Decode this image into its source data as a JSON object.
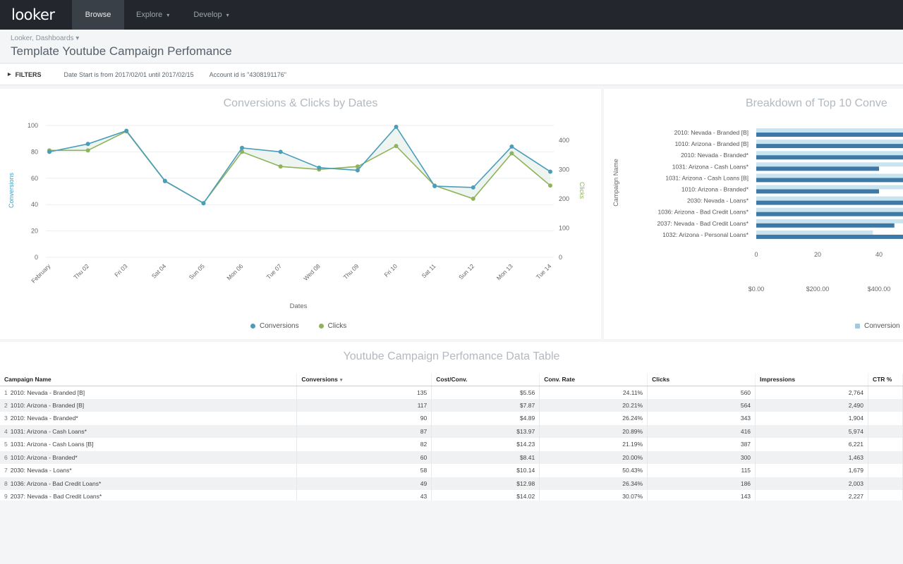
{
  "nav": {
    "logo": "looker",
    "items": [
      {
        "label": "Browse",
        "active": true,
        "caret": ""
      },
      {
        "label": "Explore",
        "active": false,
        "caret": "▾"
      },
      {
        "label": "Develop",
        "active": false,
        "caret": "▾"
      }
    ]
  },
  "header": {
    "breadcrumb": "Looker, Dashboards ▾",
    "title": "Template Youtube Campaign Perfomance"
  },
  "filters": {
    "label": "FILTERS",
    "date_text": "Date Start is from 2017/02/01 until 2017/02/15",
    "account_text": "Account id is \"4308191176\""
  },
  "colors": {
    "conversions": "#4b9dbc",
    "clicks": "#8fb35a",
    "bar_dark": "#3d79a6",
    "bar_light": "#c9e4f1"
  },
  "line_chart": {
    "title": "Conversions & Clicks by Dates",
    "xlabel": "Dates",
    "ylabel_left": "Conversions",
    "ylabel_right": "Clicks",
    "legend": [
      {
        "name": "Conversions",
        "color": "#4b9dbc"
      },
      {
        "name": "Clicks",
        "color": "#8fb35a"
      }
    ]
  },
  "bar_chart": {
    "title": "Breakdown of Top 10 Conve",
    "ylabel": "Campaign Name",
    "legend": "Conversion"
  },
  "chart_data": [
    {
      "type": "line",
      "title": "Conversions & Clicks by Dates",
      "xlabel": "Dates",
      "ylabel": "Conversions",
      "y2label": "Clicks",
      "x": [
        "February",
        "Thu 02",
        "Fri 03",
        "Sat 04",
        "Sun 05",
        "Mon 06",
        "Tue 07",
        "Wed 08",
        "Thu 09",
        "Fri 10",
        "Sat 11",
        "Sun 12",
        "Mon 13",
        "Tue 14"
      ],
      "ylim": [
        0,
        100
      ],
      "y_ticks": [
        0,
        20,
        40,
        60,
        80,
        100
      ],
      "y2lim": [
        0,
        450
      ],
      "y2_ticks": [
        0,
        100,
        200,
        300,
        400
      ],
      "series": [
        {
          "name": "Conversions",
          "axis": "left",
          "values": [
            80,
            86,
            96,
            58,
            41,
            83,
            80,
            68,
            66,
            99,
            54,
            53,
            84,
            65
          ]
        },
        {
          "name": "Clicks",
          "axis": "right",
          "values": [
            365,
            365,
            430,
            260,
            185,
            360,
            310,
            300,
            310,
            380,
            245,
            200,
            355,
            245
          ]
        }
      ],
      "legend_position": "bottom"
    },
    {
      "type": "bar",
      "title": "Breakdown of Top 10 Conve",
      "ylabel": "Campaign Name",
      "orientation": "horizontal",
      "categories": [
        "2010: Nevada - Branded [B]",
        "1010: Arizona - Branded [B]",
        "2010: Nevada - Branded*",
        "1031: Arizona - Cash Loans*",
        "1031: Arizona - Cash Loans [B]",
        "1010: Arizona - Branded*",
        "2030: Nevada - Loans*",
        "1036: Arizona - Bad Credit Loans*",
        "2037: Nevada - Bad Credit Loans*",
        "1032: Arizona - Personal Loans*"
      ],
      "x_ticks": [
        "0",
        "20",
        "40"
      ],
      "x2_ticks": [
        "$0.00",
        "$200.00",
        "$400.00"
      ],
      "values_light": [
        110,
        110,
        110,
        110,
        110,
        110,
        110,
        110,
        110,
        38
      ],
      "values_dark": [
        110,
        110,
        50,
        40,
        110,
        40,
        110,
        110,
        45,
        110
      ],
      "legend": [
        "Conversion"
      ]
    }
  ],
  "table": {
    "title": "Youtube Campaign Perfomance Data Table",
    "sort_icon": "▾",
    "columns": [
      "Campaign Name",
      "Conversions",
      "Cost/Conv.",
      "Conv. Rate",
      "Clicks",
      "Impressions",
      "CTR %"
    ],
    "rows": [
      [
        "1",
        "2010: Nevada - Branded [B]",
        "135",
        "$5.56",
        "24.11%",
        "560",
        "2,764"
      ],
      [
        "2",
        "1010: Arizona - Branded [B]",
        "117",
        "$7.87",
        "20.21%",
        "564",
        "2,490"
      ],
      [
        "3",
        "2010: Nevada - Branded*",
        "90",
        "$4.89",
        "26.24%",
        "343",
        "1,904"
      ],
      [
        "4",
        "1031: Arizona - Cash Loans*",
        "87",
        "$13.97",
        "20.89%",
        "416",
        "5,974"
      ],
      [
        "5",
        "1031: Arizona - Cash Loans [B]",
        "82",
        "$14.23",
        "21.19%",
        "387",
        "6,221"
      ],
      [
        "6",
        "1010: Arizona - Branded*",
        "60",
        "$8.41",
        "20.00%",
        "300",
        "1,463"
      ],
      [
        "7",
        "2030: Nevada - Loans*",
        "58",
        "$10.14",
        "50.43%",
        "115",
        "1,679"
      ],
      [
        "8",
        "1036: Arizona - Bad Credit Loans*",
        "49",
        "$12.98",
        "26.34%",
        "186",
        "2,003"
      ],
      [
        "9",
        "2037: Nevada - Bad Credit Loans*",
        "43",
        "$14.02",
        "30.07%",
        "143",
        "2,227"
      ]
    ]
  }
}
